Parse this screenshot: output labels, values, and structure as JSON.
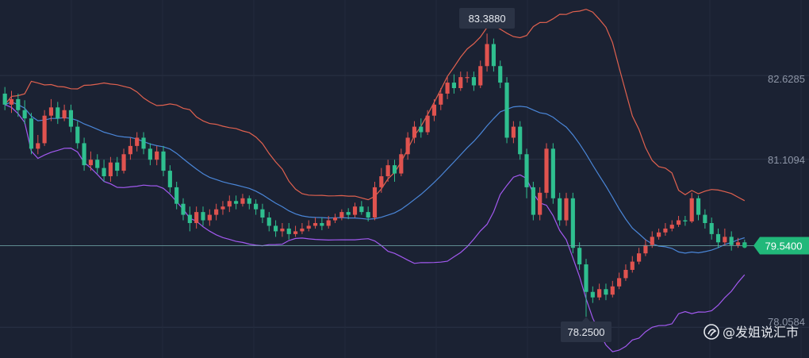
{
  "chart_data": {
    "type": "candlestick",
    "y_ticks": [
      "82.6285",
      "81.1094",
      "78.0584"
    ],
    "ylim": [
      77.5,
      84.0
    ],
    "current_price": "79.5400",
    "annotations": {
      "high": "83.3880",
      "low": "78.2500"
    },
    "colors": {
      "up": "#e0534f",
      "down": "#2fbf8f",
      "upper_band": "#e0614f",
      "middle_band": "#4a86d8",
      "lower_band": "#a259f0",
      "price_tag": "#21b87a"
    },
    "candles": [
      [
        82.3,
        82.1,
        82.42,
        82.0
      ],
      [
        82.1,
        82.2,
        82.35,
        81.95
      ],
      [
        82.2,
        82.0,
        82.3,
        81.88
      ],
      [
        82.0,
        81.85,
        82.18,
        81.75
      ],
      [
        81.85,
        81.3,
        81.95,
        81.2
      ],
      [
        81.3,
        81.4,
        81.55,
        81.2
      ],
      [
        81.4,
        81.9,
        82.0,
        81.35
      ],
      [
        81.9,
        82.05,
        82.2,
        81.8
      ],
      [
        82.05,
        81.85,
        82.15,
        81.75
      ],
      [
        81.85,
        82.0,
        82.1,
        81.8
      ],
      [
        82.0,
        81.7,
        82.1,
        81.6
      ],
      [
        81.7,
        81.4,
        81.8,
        81.3
      ],
      [
        81.4,
        81.0,
        81.5,
        80.9
      ],
      [
        81.0,
        81.1,
        81.25,
        80.9
      ],
      [
        81.1,
        80.95,
        81.2,
        80.85
      ],
      [
        80.95,
        80.8,
        81.1,
        80.7
      ],
      [
        80.8,
        81.05,
        81.15,
        80.7
      ],
      [
        81.05,
        80.9,
        81.15,
        80.8
      ],
      [
        80.9,
        81.2,
        81.3,
        80.85
      ],
      [
        81.2,
        81.35,
        81.5,
        81.1
      ],
      [
        81.35,
        81.5,
        81.6,
        81.25
      ],
      [
        81.5,
        81.3,
        81.6,
        81.2
      ],
      [
        81.3,
        81.1,
        81.4,
        81.0
      ],
      [
        81.1,
        81.25,
        81.35,
        81.0
      ],
      [
        81.25,
        80.9,
        81.35,
        80.8
      ],
      [
        80.9,
        80.6,
        81.0,
        80.5
      ],
      [
        80.6,
        80.3,
        80.7,
        80.2
      ],
      [
        80.3,
        80.1,
        80.4,
        80.0
      ],
      [
        80.1,
        79.95,
        80.25,
        79.8
      ],
      [
        79.95,
        80.15,
        80.25,
        79.85
      ],
      [
        80.15,
        80.0,
        80.25,
        79.9
      ],
      [
        80.0,
        80.1,
        80.2,
        79.9
      ],
      [
        80.1,
        80.2,
        80.3,
        80.0
      ],
      [
        80.2,
        80.25,
        80.35,
        80.1
      ],
      [
        80.25,
        80.35,
        80.45,
        80.15
      ],
      [
        80.35,
        80.3,
        80.45,
        80.2
      ],
      [
        80.3,
        80.4,
        80.48,
        80.25
      ],
      [
        80.4,
        80.3,
        80.45,
        80.2
      ],
      [
        80.3,
        80.2,
        80.38,
        80.1
      ],
      [
        80.2,
        80.05,
        80.3,
        79.95
      ],
      [
        80.05,
        79.9,
        80.15,
        79.8
      ],
      [
        79.9,
        79.8,
        80.0,
        79.7
      ],
      [
        79.8,
        79.85,
        79.95,
        79.7
      ],
      [
        79.85,
        79.75,
        79.95,
        79.65
      ],
      [
        79.75,
        79.8,
        79.9,
        79.7
      ],
      [
        79.8,
        79.85,
        79.95,
        79.75
      ],
      [
        79.85,
        79.9,
        80.0,
        79.8
      ],
      [
        79.9,
        79.95,
        80.05,
        79.85
      ],
      [
        79.95,
        79.9,
        80.05,
        79.82
      ],
      [
        79.9,
        80.0,
        80.08,
        79.85
      ],
      [
        80.0,
        80.05,
        80.12,
        79.95
      ],
      [
        80.05,
        80.15,
        80.2,
        80.0
      ],
      [
        80.15,
        80.1,
        80.22,
        80.02
      ],
      [
        80.1,
        80.25,
        80.32,
        80.05
      ],
      [
        80.25,
        80.15,
        80.35,
        80.1
      ],
      [
        80.15,
        80.05,
        80.25,
        79.98
      ],
      [
        80.05,
        80.6,
        80.7,
        80.0
      ],
      [
        80.6,
        80.8,
        80.95,
        80.5
      ],
      [
        80.8,
        81.0,
        81.1,
        80.7
      ],
      [
        81.0,
        80.85,
        81.1,
        80.7
      ],
      [
        80.85,
        81.2,
        81.3,
        80.8
      ],
      [
        81.2,
        81.5,
        81.6,
        81.1
      ],
      [
        81.5,
        81.7,
        81.8,
        81.4
      ],
      [
        81.7,
        81.6,
        81.85,
        81.5
      ],
      [
        81.6,
        81.9,
        82.0,
        81.55
      ],
      [
        81.9,
        82.1,
        82.2,
        81.8
      ],
      [
        82.1,
        82.3,
        82.4,
        82.0
      ],
      [
        82.3,
        82.5,
        82.6,
        82.2
      ],
      [
        82.5,
        82.4,
        82.65,
        82.3
      ],
      [
        82.4,
        82.6,
        82.7,
        82.35
      ],
      [
        82.6,
        82.6,
        82.7,
        82.5
      ],
      [
        82.6,
        82.45,
        82.7,
        82.35
      ],
      [
        82.45,
        82.8,
        82.9,
        82.4
      ],
      [
        82.8,
        83.2,
        83.39,
        82.7
      ],
      [
        83.2,
        82.8,
        83.3,
        82.7
      ],
      [
        82.8,
        82.5,
        82.9,
        82.4
      ],
      [
        82.5,
        81.5,
        82.6,
        81.4
      ],
      [
        81.5,
        81.7,
        81.8,
        81.4
      ],
      [
        81.7,
        81.2,
        81.8,
        81.1
      ],
      [
        81.2,
        80.6,
        81.3,
        80.4
      ],
      [
        80.6,
        80.1,
        80.7,
        80.0
      ],
      [
        80.1,
        80.5,
        80.6,
        80.0
      ],
      [
        80.5,
        81.3,
        81.4,
        80.4
      ],
      [
        81.3,
        80.4,
        81.4,
        80.3
      ],
      [
        80.4,
        80.0,
        80.5,
        79.9
      ],
      [
        80.0,
        80.4,
        80.5,
        79.9
      ],
      [
        80.4,
        79.5,
        80.5,
        79.4
      ],
      [
        79.5,
        79.2,
        79.6,
        79.1
      ],
      [
        79.2,
        78.7,
        79.3,
        78.25
      ],
      [
        78.7,
        78.6,
        78.8,
        78.5
      ],
      [
        78.6,
        78.75,
        78.85,
        78.55
      ],
      [
        78.75,
        78.65,
        78.85,
        78.55
      ],
      [
        78.65,
        78.8,
        78.9,
        78.6
      ],
      [
        78.8,
        78.95,
        79.05,
        78.75
      ],
      [
        78.95,
        79.1,
        79.2,
        78.9
      ],
      [
        79.1,
        79.25,
        79.35,
        79.05
      ],
      [
        79.25,
        79.4,
        79.5,
        79.2
      ],
      [
        79.4,
        79.55,
        79.65,
        79.35
      ],
      [
        79.55,
        79.7,
        79.8,
        79.5
      ],
      [
        79.7,
        79.78,
        79.85,
        79.65
      ],
      [
        79.78,
        79.85,
        79.95,
        79.72
      ],
      [
        79.85,
        79.92,
        80.0,
        79.8
      ],
      [
        79.92,
        80.0,
        80.08,
        79.88
      ],
      [
        80.0,
        79.98,
        80.08,
        79.9
      ],
      [
        79.98,
        80.4,
        80.5,
        79.95
      ],
      [
        80.4,
        80.1,
        80.45,
        80.0
      ],
      [
        80.1,
        79.95,
        80.2,
        79.85
      ],
      [
        79.95,
        79.75,
        80.05,
        79.65
      ],
      [
        79.75,
        79.6,
        79.85,
        79.5
      ],
      [
        79.6,
        79.7,
        79.85,
        79.55
      ],
      [
        79.7,
        79.55,
        79.8,
        79.45
      ],
      [
        79.55,
        79.6,
        79.68,
        79.5
      ],
      [
        79.6,
        79.55,
        79.65,
        79.5
      ]
    ]
  },
  "watermark": {
    "text": "@发姐说汇市",
    "icon": "weibo-style-icon"
  }
}
